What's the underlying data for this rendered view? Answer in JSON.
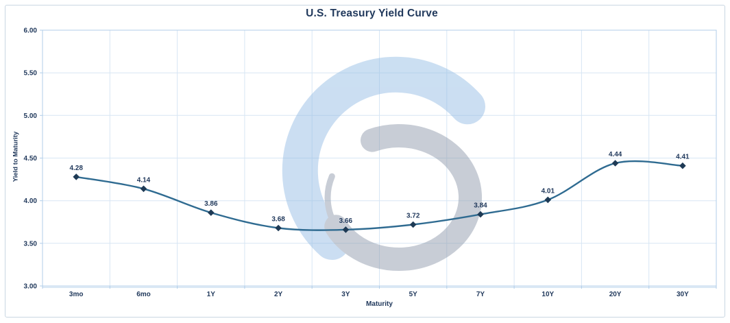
{
  "chart_data": {
    "type": "line",
    "title": "U.S. Treasury Yield Curve",
    "xlabel": "Maturity",
    "ylabel": "Yield to Maturity",
    "categories": [
      "3mo",
      "6mo",
      "1Y",
      "2Y",
      "3Y",
      "5Y",
      "7Y",
      "10Y",
      "20Y",
      "30Y"
    ],
    "values": [
      4.28,
      4.14,
      3.86,
      3.68,
      3.66,
      3.72,
      3.84,
      4.01,
      4.44,
      4.41
    ],
    "point_labels": [
      "4.28",
      "4.14",
      "3.86",
      "3.68",
      "3.66",
      "3.72",
      "3.84",
      "4.01",
      "4.44",
      "4.41"
    ],
    "ylim": [
      3.0,
      6.0
    ],
    "y_tick_values": [
      3.0,
      3.5,
      4.0,
      4.5,
      5.0,
      5.5,
      6.0
    ],
    "y_tick_labels": [
      "3.00",
      "3.50",
      "4.00",
      "4.50",
      "5.00",
      "5.50",
      "6.00"
    ],
    "grid": true,
    "legend": "none",
    "marker": "diamond",
    "line_style": "smooth"
  },
  "watermark": {
    "name": "circular-double-swoosh-logo",
    "blue": "#93bce4",
    "gray": "#8e99aa",
    "opacity": 0.48
  },
  "colors": {
    "title_text": "#21395c",
    "axis_text": "#21395c",
    "line": "#2f6b91",
    "marker": "#1e3a55",
    "grid": "#d7e6f4",
    "plot_border": "#b0cde9",
    "frame_border": "#c9d6e2",
    "background": "#ffffff"
  }
}
